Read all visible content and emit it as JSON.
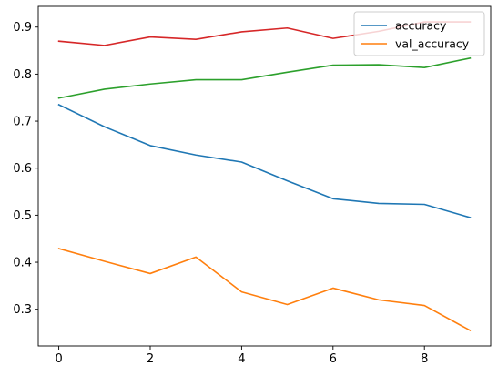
{
  "chart_data": {
    "type": "line",
    "x": [
      0,
      1,
      2,
      3,
      4,
      5,
      6,
      7,
      8,
      9
    ],
    "series": [
      {
        "name": "accuracy",
        "color": "#1f77b4",
        "values": [
          0.735,
          0.688,
          0.648,
          0.628,
          0.613,
          0.573,
          0.535,
          0.525,
          0.523,
          0.495
        ]
      },
      {
        "name": "val_accuracy",
        "color": "#ff7f0e",
        "values": [
          0.429,
          0.402,
          0.376,
          0.411,
          0.337,
          0.31,
          0.345,
          0.32,
          0.308,
          0.255
        ]
      },
      {
        "color": "#2ca02c",
        "values": [
          0.749,
          0.768,
          0.779,
          0.788,
          0.788,
          0.804,
          0.819,
          0.82,
          0.814,
          0.834
        ]
      },
      {
        "color": "#d62728",
        "values": [
          0.87,
          0.861,
          0.879,
          0.874,
          0.89,
          0.898,
          0.876,
          0.891,
          0.911,
          0.911
        ]
      }
    ],
    "xlim": [
      -0.45,
      9.45
    ],
    "ylim": [
      0.222,
      0.944
    ],
    "xticks": [
      0,
      2,
      4,
      6,
      8
    ],
    "yticks": [
      0.3,
      0.4,
      0.5,
      0.6,
      0.7,
      0.8,
      0.9
    ],
    "xtick_labels": [
      "0",
      "2",
      "4",
      "6",
      "8"
    ],
    "ytick_labels": [
      "0.3",
      "0.4",
      "0.5",
      "0.6",
      "0.7",
      "0.8",
      "0.9"
    ],
    "legend_entries": [
      "accuracy",
      "val_accuracy"
    ],
    "legend_location": "top-right",
    "grid": false,
    "title": "",
    "xlabel": "",
    "ylabel": ""
  }
}
